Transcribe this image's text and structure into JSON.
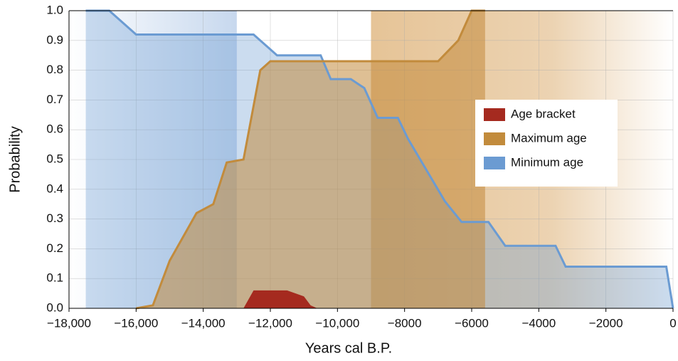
{
  "chart_data": {
    "type": "area",
    "x_label": "Years cal B.P.",
    "y_label": "Probability",
    "xlim": [
      -18000,
      0
    ],
    "ylim": [
      0,
      1
    ],
    "xticks": [
      {
        "value": -18000,
        "label": "−18,000"
      },
      {
        "value": -16000,
        "label": "−16,000"
      },
      {
        "value": -14000,
        "label": "−14,000"
      },
      {
        "value": -12000,
        "label": "−12,000"
      },
      {
        "value": -10000,
        "label": "−10,000"
      },
      {
        "value": -8000,
        "label": "−8000"
      },
      {
        "value": -6000,
        "label": "−6000"
      },
      {
        "value": -4000,
        "label": "−4000"
      },
      {
        "value": -2000,
        "label": "−2000"
      },
      0
    ],
    "yticks": [
      {
        "value": 0,
        "label": "0.0"
      },
      0.1,
      0.2,
      0.3,
      0.4,
      0.5,
      0.6,
      0.7,
      0.8,
      0.9,
      {
        "value": 1,
        "label": "1.0"
      }
    ],
    "grid": true,
    "legend": "right",
    "series": [
      {
        "name": "Minimum age",
        "color": "#6b9bd2",
        "opacity": 0.35,
        "outline": true,
        "x": [
          -17500,
          -16800,
          -16000,
          -12500,
          -11800,
          -10500,
          -10200,
          -9600,
          -9200,
          -8800,
          -8200,
          -7900,
          -6800,
          -6300,
          -5500,
          -5000,
          -3500,
          -3200,
          -200,
          0
        ],
        "values": [
          1.0,
          1.0,
          0.92,
          0.92,
          0.85,
          0.85,
          0.77,
          0.77,
          0.74,
          0.64,
          0.64,
          0.57,
          0.36,
          0.29,
          0.29,
          0.21,
          0.21,
          0.14,
          0.14,
          0
        ]
      },
      {
        "name": "Maximum age",
        "color": "#c28b3c",
        "opacity": 0.55,
        "outline": true,
        "x": [
          -16000,
          -15500,
          -15000,
          -14200,
          -13700,
          -13300,
          -12800,
          -12300,
          -12000,
          -7000,
          -6400,
          -6000,
          -5600
        ],
        "values": [
          0,
          0.01,
          0.16,
          0.32,
          0.35,
          0.49,
          0.5,
          0.8,
          0.83,
          0.83,
          0.9,
          1.0,
          1.0
        ]
      },
      {
        "name": "Age bracket",
        "color": "#a52a1f",
        "opacity": 1,
        "outline": false,
        "x": [
          -12800,
          -12500,
          -11500,
          -11000,
          -10800,
          -10600
        ],
        "values": [
          0,
          0.06,
          0.06,
          0.04,
          0.01,
          0
        ]
      }
    ]
  }
}
